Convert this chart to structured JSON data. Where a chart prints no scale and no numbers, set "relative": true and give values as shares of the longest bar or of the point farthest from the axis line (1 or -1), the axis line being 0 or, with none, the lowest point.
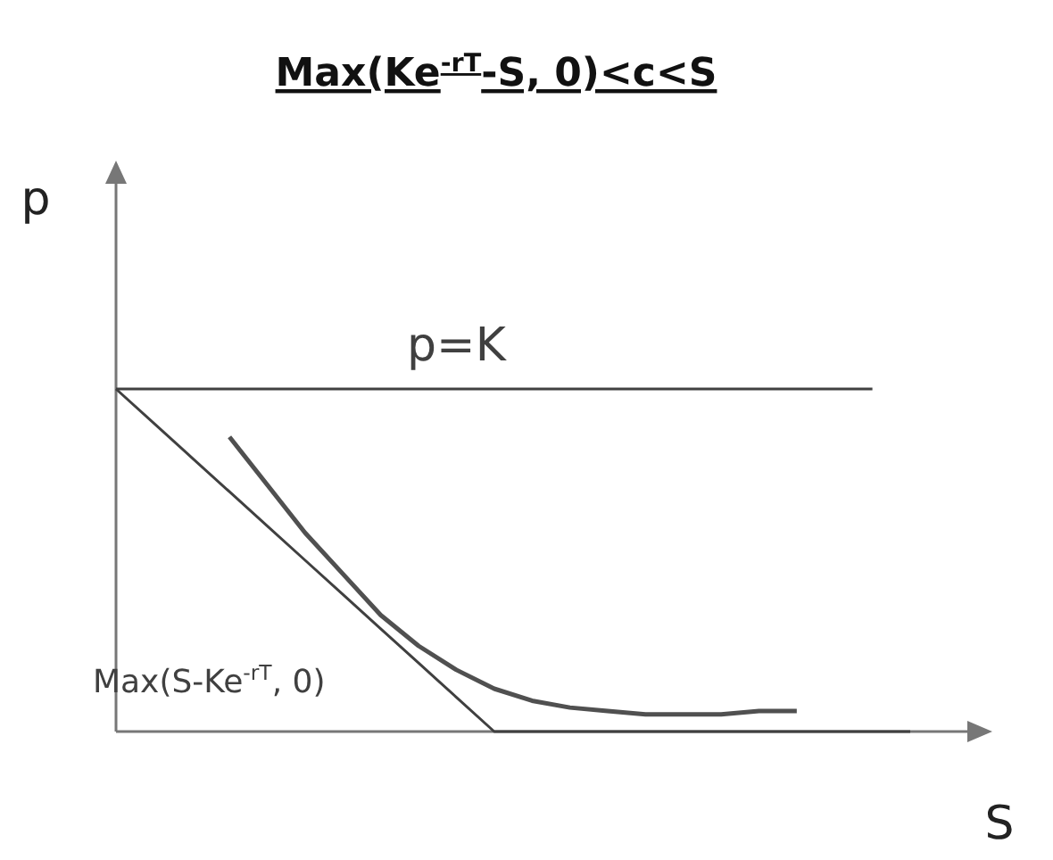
{
  "chart_data": {
    "type": "line",
    "title": "Max(Ke$^{-rT}$-S, 0)<c<S",
    "xlabel": "S",
    "ylabel": "p",
    "relative": true,
    "categories": [
      null,
      null,
      null,
      null,
      null,
      null,
      null,
      null,
      null,
      null,
      null,
      null,
      null,
      null,
      null,
      null,
      null,
      null,
      null,
      null,
      null,
      null
    ],
    "series": [
      {
        "name": "p=K",
        "color": "#404040",
        "values": [
          1,
          1,
          1,
          1,
          1,
          1,
          1,
          1,
          1,
          1,
          1,
          1,
          1,
          1,
          1,
          1,
          1,
          1,
          1,
          1,
          1,
          null
        ]
      },
      {
        "name": "Max(S-Ke$^{-rT}$, 0)",
        "color": "#404040",
        "values": [
          1,
          0.9,
          0.8,
          0.7,
          0.6,
          0.5,
          0.4,
          0.3,
          0.2,
          0.1,
          0,
          0,
          0,
          0,
          0,
          0,
          0,
          0,
          0,
          0,
          0,
          0
        ]
      },
      {
        "color": "#505050",
        "values": [
          null,
          null,
          null,
          0.86,
          0.72,
          0.58,
          0.46,
          0.34,
          0.25,
          0.18,
          0.125,
          0.09,
          0.07,
          0.06,
          0.05,
          0.05,
          0.05,
          0.06,
          0.06,
          null,
          null,
          null
        ]
      }
    ]
  }
}
